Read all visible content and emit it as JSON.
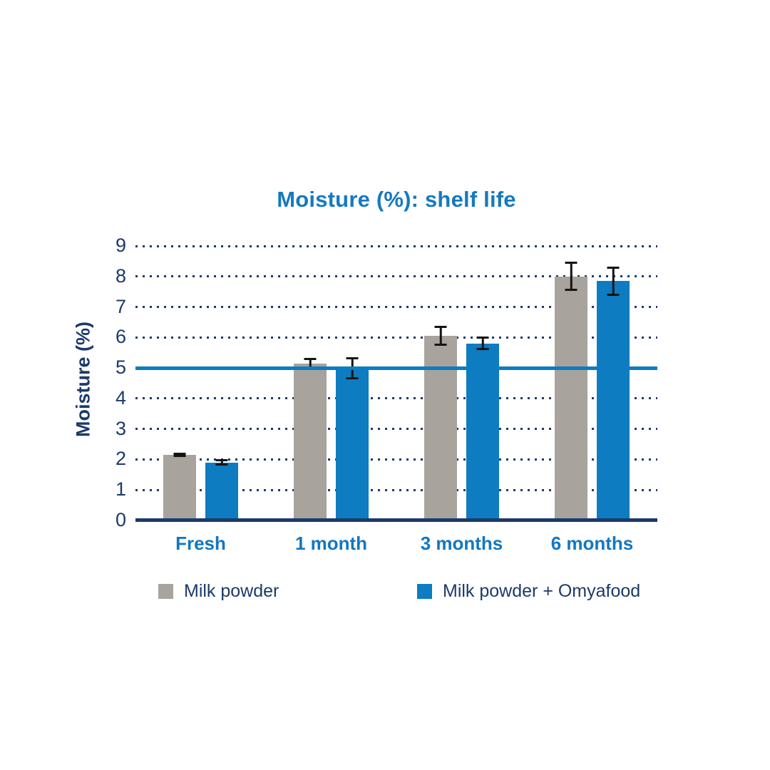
{
  "chart_data": {
    "type": "bar",
    "title": "Moisture (%): shelf life",
    "ylabel": "Moisture (%)",
    "xlabel": "",
    "categories": [
      "Fresh",
      "1 month",
      "3 months",
      "6 months"
    ],
    "series": [
      {
        "name": "Milk powder",
        "color": "#a8a39c",
        "values": [
          2.15,
          5.15,
          6.05,
          8.0
        ],
        "errors": [
          0.06,
          0.18,
          0.33,
          0.48
        ]
      },
      {
        "name": "Milk powder + Omyafood",
        "color": "#0d7cc1",
        "values": [
          1.9,
          5.0,
          5.8,
          7.85
        ],
        "errors": [
          0.1,
          0.36,
          0.22,
          0.48
        ]
      }
    ],
    "ylim": [
      0,
      9
    ],
    "yticks": [
      0,
      1,
      2,
      3,
      4,
      5,
      6,
      7,
      8,
      9
    ],
    "grid": "dotted horizontal gridlines at integers",
    "reference_line": {
      "value": 5,
      "color": "#0d7cc1"
    },
    "legend_position": "bottom"
  },
  "colors": {
    "title_blue": "#1579c0",
    "label_blue": "#1277c2",
    "navy": "#1c3a6a",
    "bar_gray": "#a8a39c",
    "bar_blue": "#0d7cc1",
    "error_bar": "#141414",
    "background": "#ffffff"
  }
}
